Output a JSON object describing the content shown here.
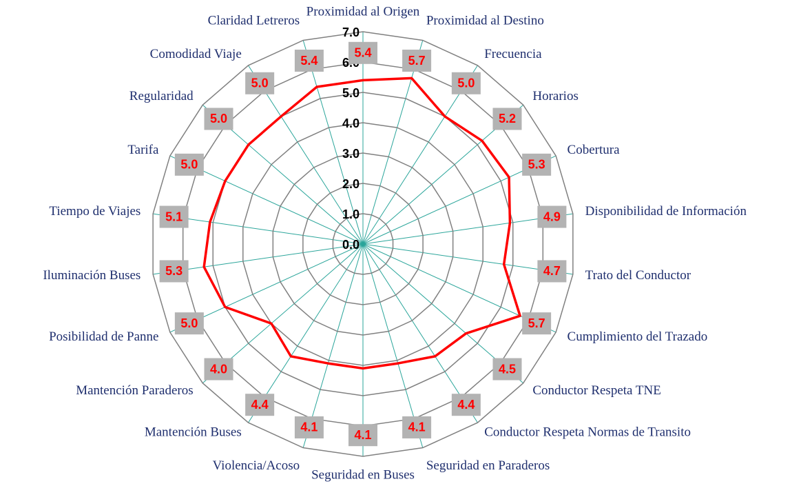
{
  "chart_data": {
    "type": "radar",
    "categories": [
      "Proximidad al Origen",
      "Proximidad al Destino",
      "Frecuencia",
      "Horarios",
      "Cobertura",
      "Disponibilidad de Información",
      "Trato del Conductor",
      "Cumplimiento del Trazado",
      "Conductor Respeta TNE",
      "Conductor Respeta Normas de Transito",
      "Seguridad en Paraderos",
      "Seguridad en Buses",
      "Violencia/Acoso",
      "Mantención Buses",
      "Mantención Paraderos",
      "Posibilidad de Panne",
      "Iluminación Buses",
      "Tiempo de Viajes",
      "Tarifa",
      "Regularidad",
      "Comodidad Viaje",
      "Claridad Letreros"
    ],
    "values": [
      5.4,
      5.7,
      5.0,
      5.2,
      5.3,
      4.9,
      4.7,
      5.7,
      4.5,
      4.4,
      4.1,
      4.1,
      4.1,
      4.4,
      4.0,
      5.0,
      5.3,
      5.1,
      5.0,
      5.0,
      5.0,
      5.4
    ],
    "value_labels": [
      "5.4",
      "5.7",
      "5.0",
      "5.2",
      "5.3",
      "4.9",
      "4.7",
      "5.7",
      "4.5",
      "4.4",
      "4.1",
      "4.1",
      "4.1",
      "4.4",
      "4.0",
      "5.0",
      "5.3",
      "5.1",
      "5.0",
      "5.0",
      "5.0",
      "5.4"
    ],
    "color": "#ff0000",
    "ylim": [
      0,
      7
    ],
    "yticks": [
      {
        "value": 0,
        "label": "0.0"
      },
      {
        "value": 1,
        "label": "1.0"
      },
      {
        "value": 2,
        "label": "2.0"
      },
      {
        "value": 3,
        "label": "3.0"
      },
      {
        "value": 4,
        "label": "4.0"
      },
      {
        "value": 5,
        "label": "5.0"
      },
      {
        "value": 6,
        "label": "6.0"
      },
      {
        "value": 7,
        "label": "7.0"
      }
    ],
    "grid": true
  }
}
